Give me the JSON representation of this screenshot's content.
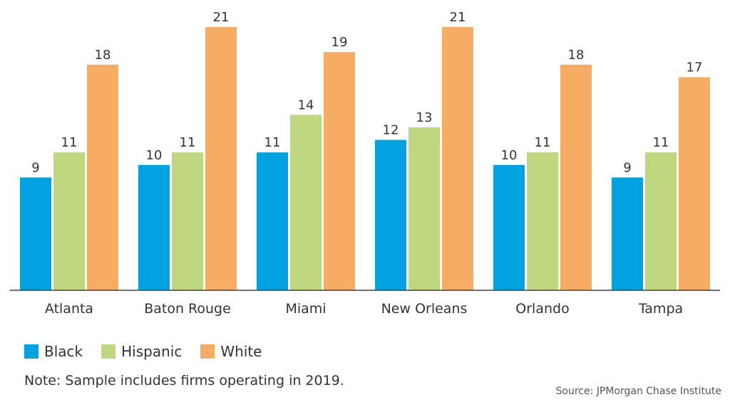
{
  "chart_data": {
    "type": "bar",
    "categories": [
      "Atlanta",
      "Baton Rouge",
      "Miami",
      "New Orleans",
      "Orlando",
      "Tampa"
    ],
    "series": [
      {
        "name": "Black",
        "color": "#00a3e0",
        "values": [
          9,
          10,
          11,
          12,
          10,
          9
        ]
      },
      {
        "name": "Hispanic",
        "color": "#bfd77e",
        "values": [
          11,
          11,
          14,
          13,
          11,
          11
        ]
      },
      {
        "name": "White",
        "color": "#f7ac63",
        "values": [
          18,
          21,
          19,
          21,
          18,
          17
        ]
      }
    ],
    "data_labels": true,
    "legend_position": "bottom-left",
    "ylim": [
      0,
      21
    ],
    "grid": false
  },
  "legend": {
    "items": [
      {
        "label": "Black",
        "color": "#00a3e0"
      },
      {
        "label": "Hispanic",
        "color": "#bfd77e"
      },
      {
        "label": "White",
        "color": "#f7ac63"
      }
    ]
  },
  "note": "Note: Sample includes firms operating in 2019.",
  "source": "Source: JPMorgan Chase Institute"
}
